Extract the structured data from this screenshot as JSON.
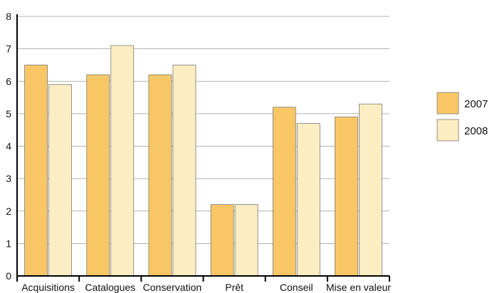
{
  "chart_data": {
    "type": "bar",
    "categories": [
      "Acquisitions",
      "Catalogues",
      "Conservation",
      "Prêt",
      "Conseil",
      "Mise en valeur"
    ],
    "series": [
      {
        "name": "2007",
        "values": [
          6.5,
          6.2,
          6.2,
          2.2,
          5.2,
          4.9
        ],
        "color": "#F9C766"
      },
      {
        "name": "2008",
        "values": [
          5.9,
          7.1,
          6.5,
          2.2,
          4.7,
          5.3
        ],
        "color": "#FDEDC2"
      }
    ],
    "title": "",
    "xlabel": "",
    "ylabel": "",
    "ylim": [
      0,
      8
    ],
    "yticks": [
      "0",
      "1",
      "2",
      "3",
      "4",
      "5",
      "6",
      "7",
      "8"
    ],
    "grid": true,
    "legend_position": "right",
    "colors": {
      "bar_stroke": "#7a7a7a",
      "grid": "#9a9a9a",
      "axis": "#000000"
    }
  }
}
